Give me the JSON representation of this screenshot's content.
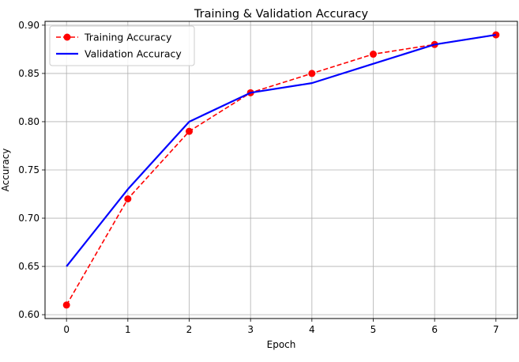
{
  "chart_data": {
    "type": "line",
    "title": "Training & Validation Accuracy",
    "xlabel": "Epoch",
    "ylabel": "Accuracy",
    "x": [
      0,
      1,
      2,
      3,
      4,
      5,
      6,
      7
    ],
    "xlim": [
      -0.35,
      7.35
    ],
    "ylim": [
      0.596,
      0.904
    ],
    "xticks": [
      0,
      1,
      2,
      3,
      4,
      5,
      6,
      7
    ],
    "yticks": [
      0.6,
      0.65,
      0.7,
      0.75,
      0.8,
      0.85,
      0.9
    ],
    "grid": true,
    "legend_position": "upper-left",
    "series": [
      {
        "name": "Training Accuracy",
        "values": [
          0.61,
          0.72,
          0.79,
          0.83,
          0.85,
          0.87,
          0.88,
          0.89
        ],
        "color": "#ff0000",
        "line_style": "dashed",
        "marker": "circle"
      },
      {
        "name": "Validation Accuracy",
        "values": [
          0.65,
          0.73,
          0.8,
          0.83,
          0.84,
          0.86,
          0.88,
          0.89
        ],
        "color": "#0000ff",
        "line_style": "solid",
        "marker": "none"
      }
    ]
  }
}
